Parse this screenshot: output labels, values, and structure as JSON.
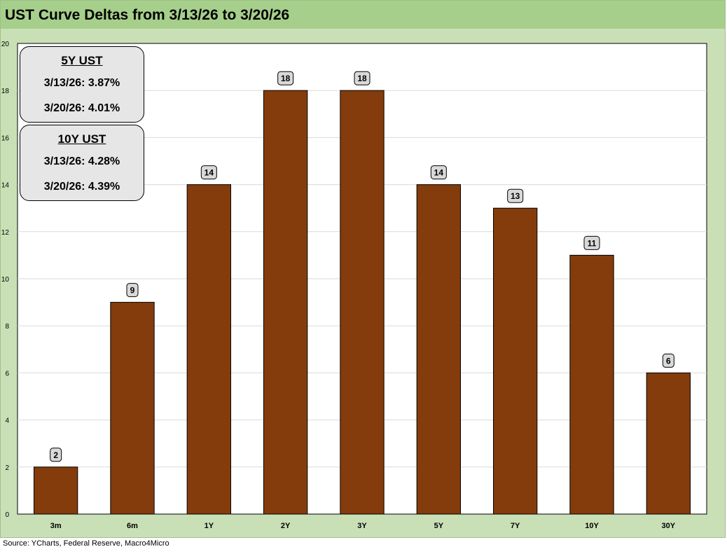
{
  "title": "UST Curve Deltas from 3/13/26 to 3/20/26",
  "source": "Source: YCharts, Federal Reserve, Macro4Micro",
  "colors": {
    "bar": "#843c0c",
    "plot_bg": "#ffffff",
    "frame_bg": "#c9e0b7",
    "title_bg": "#a7cf8c",
    "label_bg": "#d9d9d9",
    "box_bg": "#e6e6e6"
  },
  "info_boxes": [
    {
      "title": "5Y UST",
      "lines": [
        "3/13/26:  3.87%",
        "3/20/26:  4.01%"
      ]
    },
    {
      "title": "10Y UST",
      "lines": [
        "3/13/26:  4.28%",
        "3/20/26:  4.39%"
      ]
    }
  ],
  "chart_data": {
    "type": "bar",
    "title": "UST Curve Deltas from 3/13/26 to 3/20/26",
    "xlabel": "",
    "ylabel": "",
    "categories": [
      "3m",
      "6m",
      "1Y",
      "2Y",
      "3Y",
      "5Y",
      "7Y",
      "10Y",
      "30Y"
    ],
    "values": [
      2,
      9,
      14,
      18,
      18,
      14,
      13,
      11,
      6
    ],
    "ylim": [
      0,
      20
    ],
    "yticks": [
      0,
      2,
      4,
      6,
      8,
      10,
      12,
      14,
      16,
      18,
      20
    ],
    "grid": true,
    "legend": "none"
  }
}
